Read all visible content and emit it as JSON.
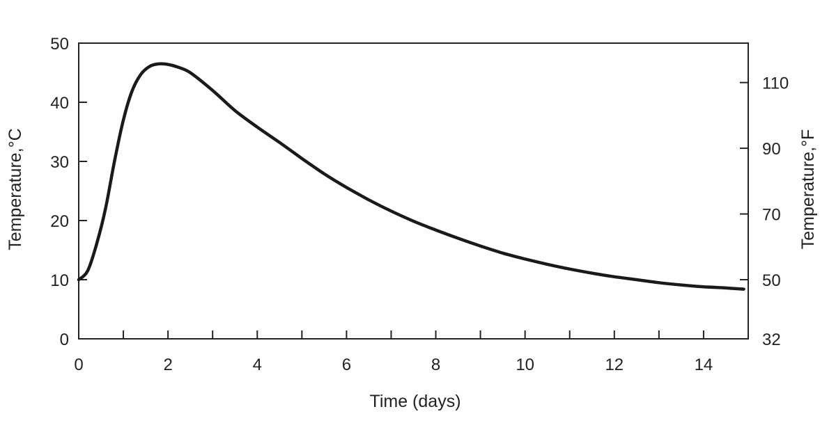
{
  "chart_data": {
    "type": "line",
    "title": "",
    "xlabel": "Time (days)",
    "ylabel": "Temperature,°C",
    "ylabel_right": "Temperature,°F",
    "xlim": [
      0,
      15
    ],
    "ylim": [
      0,
      50
    ],
    "x_ticks": [
      0,
      2,
      4,
      6,
      8,
      10,
      12,
      14
    ],
    "x_minor_ticks": [
      1,
      3,
      5,
      7,
      9,
      11,
      13
    ],
    "x_tick_labels": [
      "0",
      "2",
      "4",
      "6",
      "8",
      "10",
      "12",
      "14"
    ],
    "y_ticks": [
      0,
      10,
      20,
      30,
      40,
      50
    ],
    "y_tick_labels": [
      "0",
      "10",
      "20",
      "30",
      "40",
      "50"
    ],
    "y_right_ticks_f": [
      32,
      50,
      70,
      90,
      110
    ],
    "y_right_tick_labels": [
      "32",
      "50",
      "70",
      "90",
      "110"
    ],
    "grid": false,
    "line_color": "#1a1a1a",
    "series": [
      {
        "x": [
          0,
          0.2,
          0.4,
          0.6,
          0.8,
          1.0,
          1.2,
          1.4,
          1.6,
          1.8,
          2.0,
          2.2,
          2.5,
          3.0,
          3.5,
          4.0,
          4.5,
          5.0,
          5.5,
          6.0,
          6.5,
          7.0,
          7.5,
          8.0,
          8.5,
          9.0,
          9.5,
          10.0,
          10.5,
          11.0,
          11.5,
          12.0,
          12.5,
          13.0,
          13.5,
          14.0,
          14.5,
          14.9
        ],
        "y": [
          10,
          11.5,
          16,
          22,
          30,
          37,
          42,
          44.8,
          46.1,
          46.5,
          46.4,
          46.0,
          45.0,
          42.0,
          38.6,
          35.8,
          33.2,
          30.5,
          27.9,
          25.6,
          23.5,
          21.6,
          19.9,
          18.4,
          17.0,
          15.7,
          14.5,
          13.5,
          12.6,
          11.8,
          11.1,
          10.5,
          10.0,
          9.5,
          9.1,
          8.8,
          8.6,
          8.4
        ]
      }
    ]
  }
}
